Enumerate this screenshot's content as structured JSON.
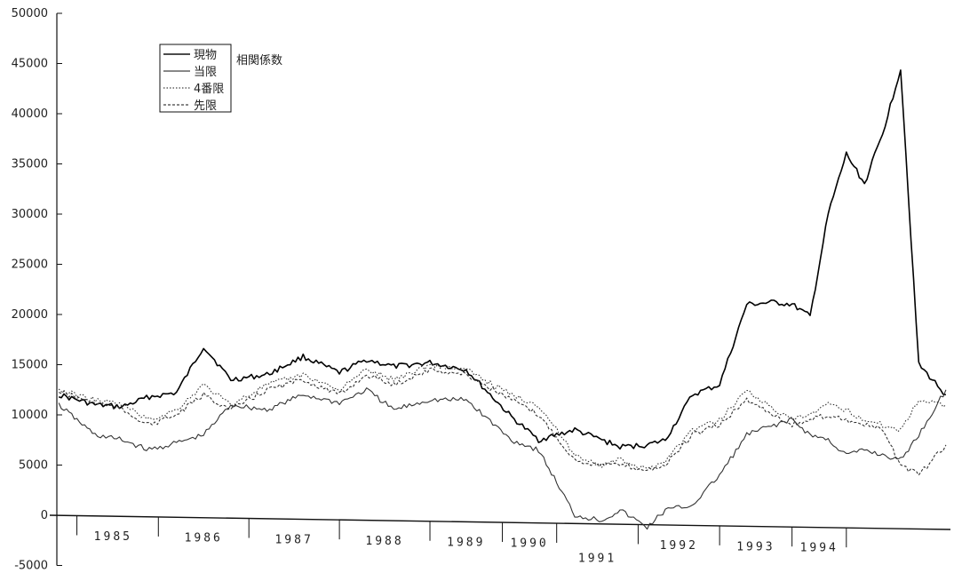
{
  "chart_data": {
    "type": "line",
    "title": "",
    "xlabel": "",
    "ylabel": "",
    "ylim": [
      -5000,
      50000
    ],
    "yticks": [
      -5000,
      0,
      5000,
      10000,
      15000,
      20000,
      25000,
      30000,
      35000,
      40000,
      45000,
      50000
    ],
    "ytick_labels": [
      "-5000",
      "0",
      "5000",
      "10000",
      "15000",
      "20000",
      "25000",
      "30000",
      "35000",
      "40000",
      "45000",
      "50000"
    ],
    "year_labels": [
      "1985",
      "1986",
      "1987",
      "1988",
      "1989",
      "1990",
      "1991",
      "1992",
      "1993",
      "1994"
    ],
    "legend_title": "相関係数",
    "legend_position": "top-left",
    "grid": false,
    "x": [
      1984.9,
      1985.3,
      1985.6,
      1985.9,
      1986.2,
      1986.5,
      1986.8,
      1987.2,
      1987.6,
      1988.0,
      1988.3,
      1988.6,
      1989.0,
      1989.4,
      1989.9,
      1990.2,
      1990.6,
      1990.9,
      1991.1,
      1991.4,
      1991.6,
      1991.9,
      1992.2,
      1992.5,
      1992.8,
      1993.0,
      1993.2,
      1993.4,
      1993.6,
      1993.8,
      1994.0,
      1994.2,
      1994.4,
      1994.7
    ],
    "series": [
      {
        "name": "現物",
        "style": "solid",
        "width": 1.6,
        "values": [
          12000,
          11000,
          10800,
          11800,
          12200,
          16800,
          13500,
          14000,
          15800,
          14200,
          15500,
          14800,
          15200,
          14500,
          9800,
          7500,
          8500,
          7500,
          6800,
          7000,
          7500,
          12000,
          13000,
          21000,
          21200,
          21000,
          19800,
          30000,
          36000,
          33000,
          38000,
          44500,
          15000,
          12000
        ]
      },
      {
        "name": "当限",
        "style": "solid",
        "width": 1.1,
        "values": [
          11000,
          8000,
          7500,
          6500,
          7200,
          8000,
          11000,
          10500,
          12000,
          11200,
          12500,
          10500,
          11500,
          11500,
          7500,
          6500,
          0,
          -500,
          500,
          -1200,
          500,
          1000,
          4000,
          8000,
          9000,
          9500,
          8000,
          7500,
          6000,
          6500,
          6000,
          5500,
          8000,
          12500
        ]
      },
      {
        "name": "4番限",
        "style": "dotted",
        "width": 1.1,
        "values": [
          12500,
          11500,
          11000,
          9500,
          10500,
          13000,
          11000,
          13000,
          14000,
          12500,
          14500,
          13500,
          15000,
          14500,
          12000,
          11000,
          6000,
          5000,
          5500,
          4500,
          5500,
          8500,
          9500,
          12500,
          10500,
          9500,
          10000,
          11000,
          10500,
          9500,
          9000,
          8500,
          11500,
          11000
        ]
      },
      {
        "name": "先限",
        "style": "dashed",
        "width": 1.1,
        "values": [
          12300,
          11200,
          10500,
          9000,
          10000,
          12000,
          10500,
          12500,
          13500,
          12000,
          14000,
          13000,
          14500,
          14000,
          11500,
          10000,
          5500,
          5000,
          5000,
          4500,
          5000,
          8000,
          9000,
          11500,
          10000,
          9000,
          9500,
          10000,
          9500,
          9000,
          8500,
          5000,
          4000,
          7000
        ]
      }
    ]
  }
}
